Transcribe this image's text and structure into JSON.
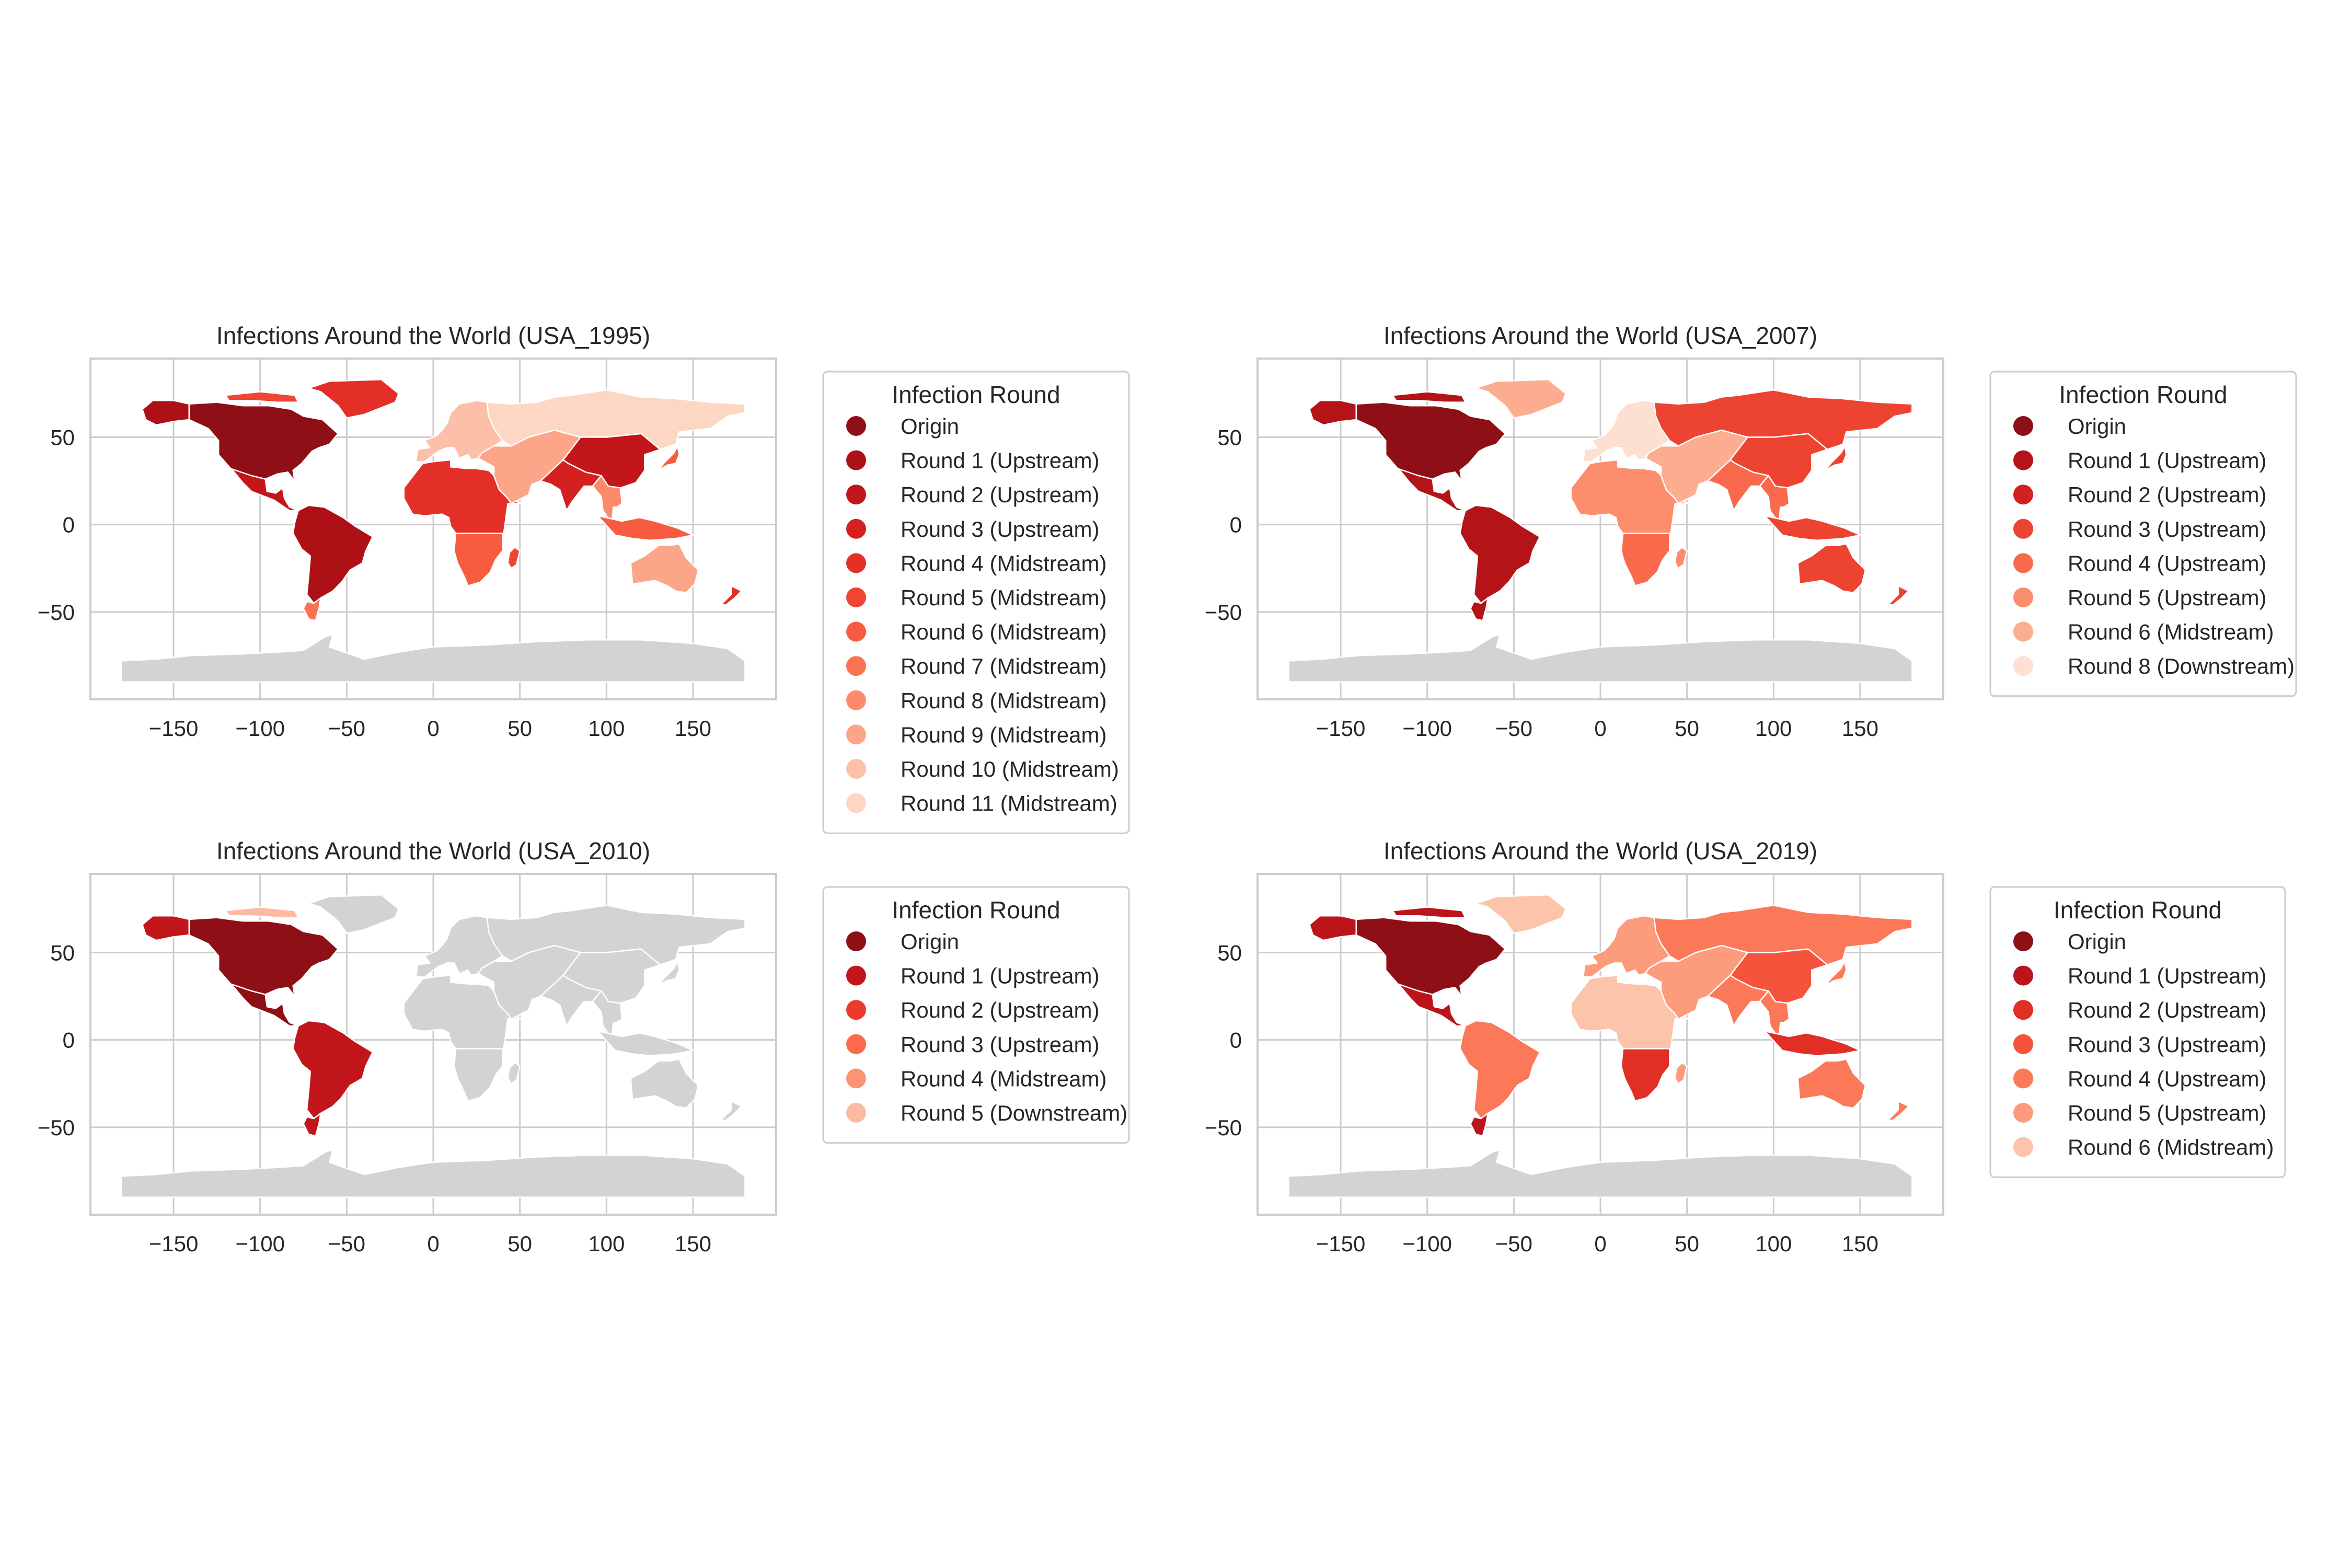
{
  "figure": {
    "panels": [
      {
        "id": "usa-1995",
        "title": "Infections Around the World (USA_1995)",
        "legend_title": "Infection Round",
        "legend": [
          {
            "label": "Origin",
            "color": "#8e0f16"
          },
          {
            "label": "Round 1 (Upstream)",
            "color": "#ad1116"
          },
          {
            "label": "Round 2 (Upstream)",
            "color": "#c2161b"
          },
          {
            "label": "Round 3 (Upstream)",
            "color": "#d42020"
          },
          {
            "label": "Round 4 (Midstream)",
            "color": "#e32f27"
          },
          {
            "label": "Round 5 (Midstream)",
            "color": "#ef4533"
          },
          {
            "label": "Round 6 (Midstream)",
            "color": "#f75c41"
          },
          {
            "label": "Round 7 (Midstream)",
            "color": "#fb7353"
          },
          {
            "label": "Round 8 (Midstream)",
            "color": "#fc8b6b"
          },
          {
            "label": "Round 9 (Midstream)",
            "color": "#fca588"
          },
          {
            "label": "Round 10 (Midstream)",
            "color": "#fcbfa7"
          },
          {
            "label": "Round 11 (Midstream)",
            "color": "#fdd6c4"
          }
        ],
        "regions": {
          "north_america": 0,
          "alaska": 1,
          "greenland": 4,
          "canada_arctic": 5,
          "central_america": 2,
          "south_america": 1,
          "south_america_tip": 7,
          "africa": 4,
          "africa_south": 6,
          "europe": 10,
          "russia": 11,
          "middle_east": 9,
          "india": 3,
          "china": 2,
          "southeast_asia": 8,
          "australia": 9,
          "indonesia": 6,
          "new_zealand": 4,
          "madagascar": 5,
          "japan": 6,
          "antarctica": null
        }
      },
      {
        "id": "usa-2007",
        "title": "Infections Around the World (USA_2007)",
        "legend_title": "Infection Round",
        "legend": [
          {
            "label": "Origin",
            "color": "#8e0f16"
          },
          {
            "label": "Round 1 (Upstream)",
            "color": "#b41318"
          },
          {
            "label": "Round 2 (Upstream)",
            "color": "#d2211f"
          },
          {
            "label": "Round 3 (Upstream)",
            "color": "#ed4331"
          },
          {
            "label": "Round 4 (Upstream)",
            "color": "#f96a4d"
          },
          {
            "label": "Round 5 (Upstream)",
            "color": "#fc8d6d"
          },
          {
            "label": "Round 6 (Midstream)",
            "color": "#fcad90"
          },
          {
            "label": "Round 8 (Downstream)",
            "color": "#fde0d2"
          }
        ],
        "regions": {
          "north_america": 0,
          "alaska": 1,
          "greenland": 6,
          "canada_arctic": 1,
          "central_america": 1,
          "south_america": 1,
          "south_america_tip": 1,
          "africa": 5,
          "africa_south": 4,
          "europe": 7,
          "russia": 3,
          "middle_east": 6,
          "india": 4,
          "china": 3,
          "southeast_asia": 4,
          "australia": 3,
          "indonesia": 3,
          "new_zealand": 3,
          "madagascar": 5,
          "japan": 3,
          "antarctica": null
        }
      },
      {
        "id": "usa-2010",
        "title": "Infections Around the World (USA_2010)",
        "legend_title": "Infection Round",
        "legend": [
          {
            "label": "Origin",
            "color": "#8e0f16"
          },
          {
            "label": "Round 1 (Upstream)",
            "color": "#c2161b"
          },
          {
            "label": "Round 2 (Upstream)",
            "color": "#ea3b2c"
          },
          {
            "label": "Round 3 (Upstream)",
            "color": "#fb6b4b"
          },
          {
            "label": "Round 4 (Midstream)",
            "color": "#fc9474"
          },
          {
            "label": "Round 5 (Downstream)",
            "color": "#fcbba1"
          }
        ],
        "regions": {
          "north_america": 0,
          "alaska": 1,
          "greenland": null,
          "canada_arctic": 5,
          "central_america": 0,
          "south_america": 1,
          "south_america_tip": 1,
          "africa": null,
          "africa_south": null,
          "europe": null,
          "russia": null,
          "middle_east": null,
          "india": null,
          "china": null,
          "southeast_asia": null,
          "australia": null,
          "indonesia": null,
          "new_zealand": null,
          "madagascar": null,
          "japan": null,
          "antarctica": null
        }
      },
      {
        "id": "usa-2019",
        "title": "Infections Around the World (USA_2019)",
        "legend_title": "Infection Round",
        "legend": [
          {
            "label": "Origin",
            "color": "#8e0f16"
          },
          {
            "label": "Round 1 (Upstream)",
            "color": "#bb141a"
          },
          {
            "label": "Round 2 (Upstream)",
            "color": "#e12f26"
          },
          {
            "label": "Round 3 (Upstream)",
            "color": "#f5533b"
          },
          {
            "label": "Round 4 (Upstream)",
            "color": "#fb7858"
          },
          {
            "label": "Round 5 (Upstream)",
            "color": "#fc9c7d"
          },
          {
            "label": "Round 6 (Midstream)",
            "color": "#fcc4ab"
          }
        ],
        "regions": {
          "north_america": 0,
          "alaska": 1,
          "greenland": 6,
          "canada_arctic": 1,
          "central_america": 1,
          "south_america": 4,
          "south_america_tip": 1,
          "africa": 6,
          "africa_south": 2,
          "europe": 5,
          "russia": 4,
          "middle_east": 5,
          "india": 4,
          "china": 3,
          "southeast_asia": 4,
          "australia": 4,
          "indonesia": 2,
          "new_zealand": 4,
          "madagascar": 5,
          "japan": 4,
          "antarctica": null
        }
      }
    ],
    "x_ticks": [
      "−150",
      "−100",
      "−50",
      "0",
      "50",
      "100",
      "150"
    ],
    "y_ticks": [
      "50",
      "0",
      "−50"
    ],
    "x_range": [
      -198,
      198
    ],
    "y_range": [
      -100,
      95
    ],
    "no_data_color": "#d3d3d3",
    "grid_color": "#cccccc",
    "axes_edge_color": "#cccccc"
  }
}
